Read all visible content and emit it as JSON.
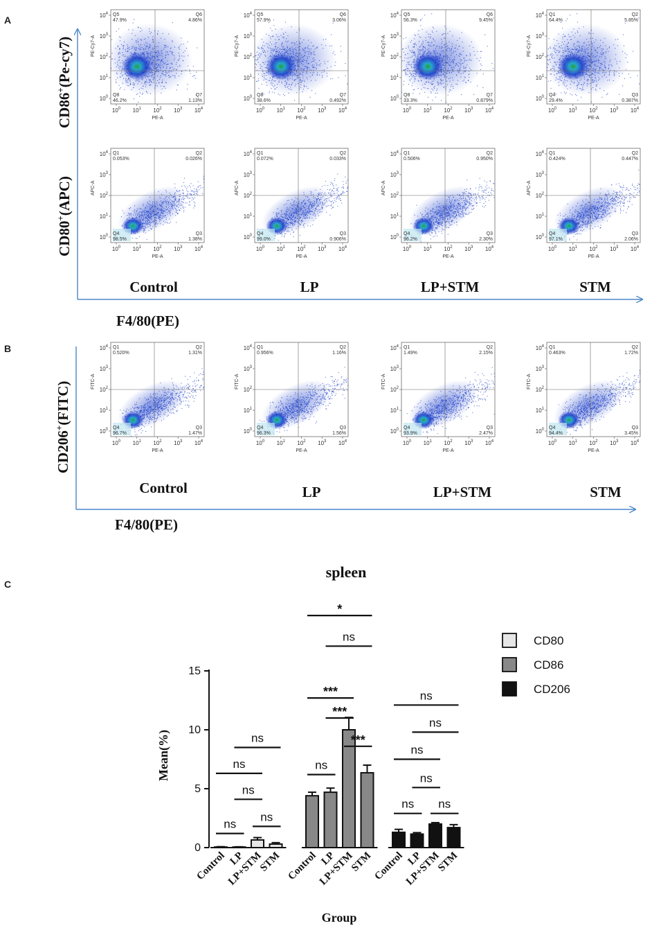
{
  "panels": {
    "a": {
      "letter": "A",
      "y_labels": {
        "cd86": {
          "main": "CD86",
          "sup": "+",
          "rest": "(Pe-cy7)"
        },
        "cd80": {
          "main": "CD80",
          "sup": "+",
          "rest": "(APC)"
        }
      },
      "x_title": "F4/80(PE)",
      "groups": [
        "Control",
        "LP",
        "LP+STM",
        "STM"
      ],
      "rows": [
        {
          "y_axis": "PE-Cy7-A",
          "x_axis": "PE-A",
          "plots": [
            {
              "q_tl": "Q5",
              "q_tr": "Q6",
              "q_bl": "Q8",
              "q_br": "Q7",
              "tl": "47.9%",
              "tr": "4.86%",
              "bl": "46.2%",
              "br": "1.13%"
            },
            {
              "q_tl": "Q5",
              "q_tr": "Q6",
              "q_bl": "Q8",
              "q_br": "Q7",
              "tl": "57.9%",
              "tr": "3.06%",
              "bl": "38.6%",
              "br": "0.492%"
            },
            {
              "q_tl": "Q5",
              "q_tr": "Q6",
              "q_bl": "Q8",
              "q_br": "Q7",
              "tl": "56.3%",
              "tr": "9.45%",
              "bl": "33.3%",
              "br": "0.879%"
            },
            {
              "q_tl": "Q1",
              "q_tr": "Q2",
              "q_bl": "Q4",
              "q_br": "Q3",
              "tl": "64.4%",
              "tr": "5.85%",
              "bl": "29.4%",
              "br": "0.387%"
            }
          ]
        },
        {
          "y_axis": "APC-A",
          "x_axis": "PE-A",
          "plots": [
            {
              "q_tl": "Q1",
              "q_tr": "Q2",
              "q_bl": "Q4",
              "q_br": "Q3",
              "tl": "0.053%",
              "tr": "0.026%",
              "bl": "98.5%",
              "br": "1.38%"
            },
            {
              "q_tl": "Q1",
              "q_tr": "Q2",
              "q_bl": "Q4",
              "q_br": "Q3",
              "tl": "0.072%",
              "tr": "0.033%",
              "bl": "99.0%",
              "br": "0.906%"
            },
            {
              "q_tl": "Q1",
              "q_tr": "Q2",
              "q_bl": "Q4",
              "q_br": "Q3",
              "tl": "0.506%",
              "tr": "0.950%",
              "bl": "96.2%",
              "br": "2.30%"
            },
            {
              "q_tl": "Q1",
              "q_tr": "Q2",
              "q_bl": "Q4",
              "q_br": "Q3",
              "tl": "0.424%",
              "tr": "0.447%",
              "bl": "97.1%",
              "br": "2.06%"
            }
          ]
        }
      ]
    },
    "b": {
      "letter": "B",
      "y_label": {
        "main": "CD206",
        "sup": "+",
        "rest": "(FITC)"
      },
      "x_title": "F4/80(PE)",
      "groups": [
        "Control",
        "LP",
        "LP+STM",
        "STM"
      ],
      "rows": [
        {
          "y_axis": "FITC-A",
          "x_axis": "PE-A",
          "plots": [
            {
              "q_tl": "Q1",
              "q_tr": "Q2",
              "q_bl": "Q4",
              "q_br": "Q3",
              "tl": "0.520%",
              "tr": "1.31%",
              "bl": "96.7%",
              "br": "1.47%"
            },
            {
              "q_tl": "Q1",
              "q_tr": "Q2",
              "q_bl": "Q4",
              "q_br": "Q3",
              "tl": "0.956%",
              "tr": "1.16%",
              "bl": "96.3%",
              "br": "1.56%"
            },
            {
              "q_tl": "Q1",
              "q_tr": "Q2",
              "q_bl": "Q4",
              "q_br": "Q3",
              "tl": "1.49%",
              "tr": "2.15%",
              "bl": "93.9%",
              "br": "2.47%"
            },
            {
              "q_tl": "Q1",
              "q_tr": "Q2",
              "q_bl": "Q4",
              "q_br": "Q3",
              "tl": "0.463%",
              "tr": "1.72%",
              "bl": "94.4%",
              "br": "3.45%"
            }
          ]
        }
      ]
    },
    "c": {
      "letter": "C"
    }
  },
  "flow_ticks": {
    "x": [
      "10",
      "10",
      "10",
      "10",
      "10"
    ],
    "x_exp": [
      "0",
      "1",
      "2",
      "3",
      "4"
    ],
    "y": [
      "10",
      "10",
      "10",
      "10",
      "10"
    ],
    "y_exp": [
      "0",
      "1",
      "2",
      "3",
      "4"
    ]
  },
  "chart_data": {
    "type": "bar",
    "title": "spleen",
    "xlabel": "Group",
    "ylabel": "Mean(%)",
    "ylim": [
      0,
      15
    ],
    "yticks": [
      "0",
      "5",
      "10",
      "15"
    ],
    "categories": [
      "Control",
      "LP",
      "LP+STM",
      "STM"
    ],
    "series": [
      {
        "name": "CD80",
        "color": "#e6e6e6",
        "values": [
          0.05,
          0.05,
          0.65,
          0.3
        ],
        "errors": [
          0.03,
          0.02,
          0.2,
          0.12
        ]
      },
      {
        "name": "CD86",
        "color": "#888888",
        "values": [
          4.4,
          4.7,
          10.0,
          6.35
        ],
        "errors": [
          0.3,
          0.35,
          1.05,
          0.65
        ]
      },
      {
        "name": "CD206",
        "color": "#111111",
        "values": [
          1.3,
          1.15,
          2.0,
          1.7
        ],
        "errors": [
          0.25,
          0.12,
          0.12,
          0.25
        ]
      }
    ],
    "comparisons": [
      {
        "series": 0,
        "from": 0,
        "to": 1,
        "y": 1.2,
        "label": "ns"
      },
      {
        "series": 0,
        "from": 0,
        "to": 2,
        "y": 6.3,
        "label": "ns"
      },
      {
        "series": 0,
        "from": 1,
        "to": 2,
        "y": 4.1,
        "label": "ns"
      },
      {
        "series": 0,
        "from": 1,
        "to": 3,
        "y": 8.5,
        "label": "ns"
      },
      {
        "series": 0,
        "from": 2,
        "to": 3,
        "y": 1.8,
        "label": "ns"
      },
      {
        "series": 1,
        "from": 0,
        "to": 1,
        "y": 6.2,
        "label": "ns"
      },
      {
        "series": 1,
        "from": 0,
        "to": 2,
        "y": 12.7,
        "label": "***"
      },
      {
        "series": 1,
        "from": 0,
        "to": 3,
        "y": 19.7,
        "label": "*"
      },
      {
        "series": 1,
        "from": 1,
        "to": 2,
        "y": 11.0,
        "label": "***"
      },
      {
        "series": 1,
        "from": 1,
        "to": 3,
        "y": 17.1,
        "label": "ns"
      },
      {
        "series": 1,
        "from": 2,
        "to": 3,
        "y": 8.6,
        "label": "***"
      },
      {
        "series": 2,
        "from": 0,
        "to": 1,
        "y": 2.9,
        "label": "ns"
      },
      {
        "series": 2,
        "from": 0,
        "to": 2,
        "y": 7.5,
        "label": "ns"
      },
      {
        "series": 2,
        "from": 0,
        "to": 3,
        "y": 12.1,
        "label": "ns"
      },
      {
        "series": 2,
        "from": 1,
        "to": 2,
        "y": 5.1,
        "label": "ns"
      },
      {
        "series": 2,
        "from": 1,
        "to": 3,
        "y": 9.8,
        "label": "ns"
      },
      {
        "series": 2,
        "from": 2,
        "to": 3,
        "y": 2.9,
        "label": "ns"
      }
    ],
    "legend": [
      "CD80",
      "CD86",
      "CD206"
    ]
  }
}
